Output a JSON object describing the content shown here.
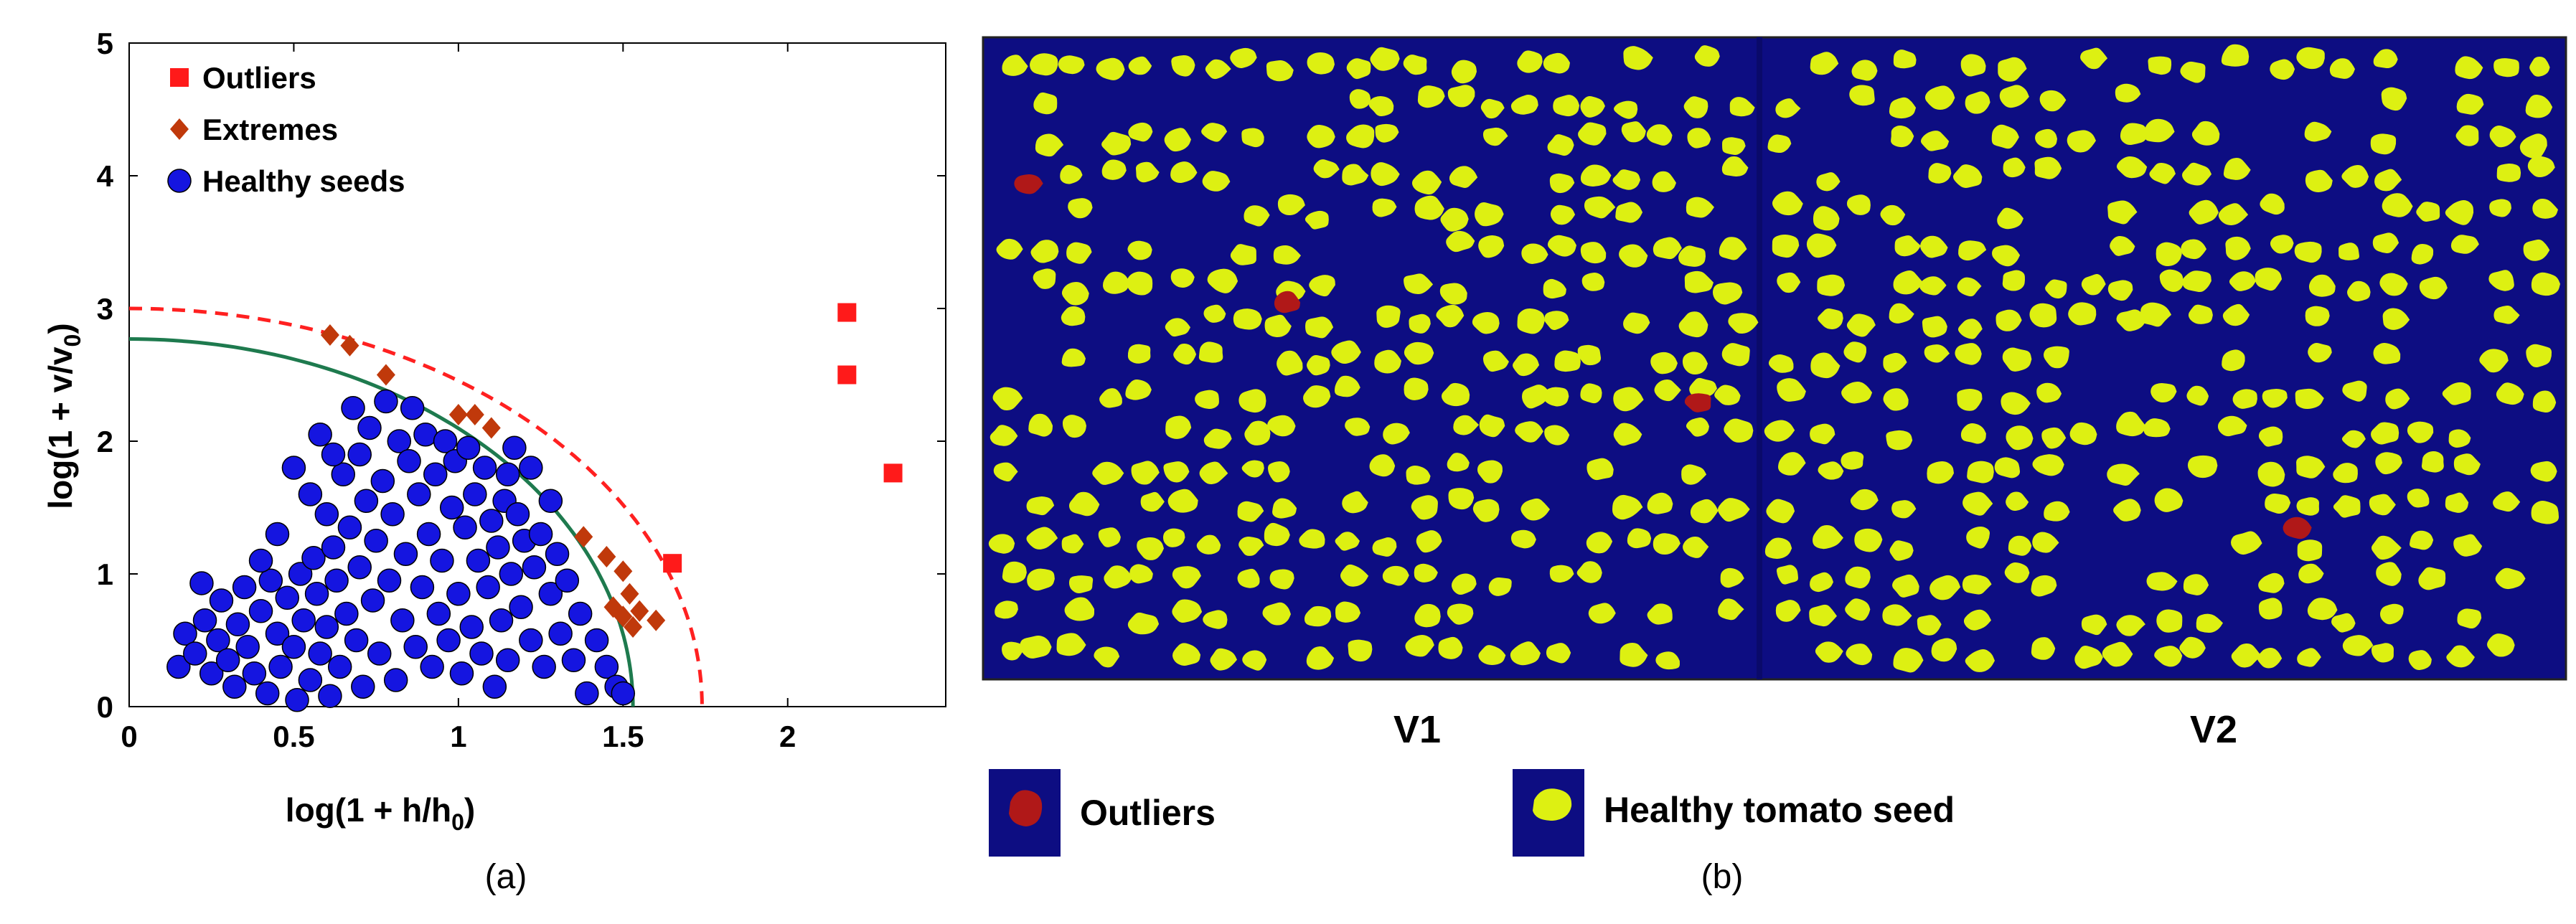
{
  "chart_data": [
    {
      "type": "scatter",
      "title": "",
      "xlabel_base": "log(1 + h/h",
      "xlabel_sub": "0",
      "xlabel_end": ")",
      "ylabel_base": "log(1 + v/v",
      "ylabel_sub": "0",
      "ylabel_end": ")",
      "xlim": [
        0,
        2.48
      ],
      "ylim": [
        0,
        5
      ],
      "xticks": [
        "0",
        "0.5",
        "1",
        "1.5",
        "2"
      ],
      "xtick_values": [
        0,
        0.5,
        1,
        1.5,
        2
      ],
      "yticks": [
        "0",
        "1",
        "2",
        "3",
        "4",
        "5"
      ],
      "ytick_values": [
        0,
        1,
        2,
        3,
        4,
        5
      ],
      "grid": false,
      "legend_placement": "top-left",
      "legend": [
        "Outliers",
        "Extremes",
        "Healthy seeds"
      ],
      "panel_label": "(a)",
      "curves": [
        {
          "name": "inner",
          "color": "#1e7a4e",
          "style": "solid",
          "x_intercept": 1.53,
          "y_intercept": 2.77
        },
        {
          "name": "outer",
          "color": "#ff2020",
          "style": "dashed",
          "x_intercept": 1.74,
          "y_intercept": 3.0
        }
      ],
      "series": [
        {
          "name": "Outliers",
          "marker": "square",
          "color": "#ff1a1a",
          "points": [
            [
              2.18,
              2.97
            ],
            [
              2.18,
              2.5
            ],
            [
              2.32,
              1.76
            ],
            [
              1.65,
              1.08
            ]
          ]
        },
        {
          "name": "Extremes",
          "marker": "diamond",
          "color": "#c0390b",
          "points": [
            [
              0.61,
              2.8
            ],
            [
              0.67,
              2.72
            ],
            [
              0.78,
              2.5
            ],
            [
              1.0,
              2.2
            ],
            [
              1.05,
              2.2
            ],
            [
              1.1,
              2.1
            ],
            [
              1.38,
              1.28
            ],
            [
              1.45,
              1.13
            ],
            [
              1.5,
              1.02
            ],
            [
              1.47,
              0.75
            ],
            [
              1.5,
              0.68
            ],
            [
              1.53,
              0.6
            ],
            [
              1.55,
              0.72
            ],
            [
              1.6,
              0.65
            ],
            [
              1.52,
              0.85
            ]
          ]
        },
        {
          "name": "Healthy seeds",
          "marker": "circle",
          "color": "#1515e0",
          "points": [
            [
              0.15,
              0.3
            ],
            [
              0.17,
              0.55
            ],
            [
              0.2,
              0.4
            ],
            [
              0.22,
              0.93
            ],
            [
              0.23,
              0.65
            ],
            [
              0.25,
              0.25
            ],
            [
              0.27,
              0.5
            ],
            [
              0.28,
              0.8
            ],
            [
              0.3,
              0.35
            ],
            [
              0.32,
              0.15
            ],
            [
              0.33,
              0.62
            ],
            [
              0.35,
              0.9
            ],
            [
              0.36,
              0.45
            ],
            [
              0.38,
              0.25
            ],
            [
              0.4,
              0.72
            ],
            [
              0.42,
              0.1
            ],
            [
              0.43,
              0.95
            ],
            [
              0.45,
              0.55
            ],
            [
              0.46,
              0.3
            ],
            [
              0.48,
              0.82
            ],
            [
              0.5,
              0.45
            ],
            [
              0.51,
              0.05
            ],
            [
              0.52,
              1.0
            ],
            [
              0.53,
              0.65
            ],
            [
              0.55,
              0.2
            ],
            [
              0.56,
              1.12
            ],
            [
              0.57,
              0.85
            ],
            [
              0.58,
              0.4
            ],
            [
              0.6,
              0.6
            ],
            [
              0.6,
              1.45
            ],
            [
              0.61,
              0.08
            ],
            [
              0.62,
              1.2
            ],
            [
              0.63,
              0.95
            ],
            [
              0.64,
              0.3
            ],
            [
              0.65,
              1.75
            ],
            [
              0.66,
              0.7
            ],
            [
              0.67,
              1.35
            ],
            [
              0.68,
              2.25
            ],
            [
              0.69,
              0.5
            ],
            [
              0.7,
              1.05
            ],
            [
              0.7,
              1.9
            ],
            [
              0.71,
              0.15
            ],
            [
              0.72,
              1.55
            ],
            [
              0.73,
              2.1
            ],
            [
              0.74,
              0.8
            ],
            [
              0.75,
              1.25
            ],
            [
              0.76,
              0.4
            ],
            [
              0.77,
              1.7
            ],
            [
              0.78,
              2.3
            ],
            [
              0.79,
              0.95
            ],
            [
              0.8,
              1.45
            ],
            [
              0.81,
              0.2
            ],
            [
              0.82,
              2.0
            ],
            [
              0.83,
              0.65
            ],
            [
              0.84,
              1.15
            ],
            [
              0.85,
              1.85
            ],
            [
              0.86,
              2.25
            ],
            [
              0.87,
              0.45
            ],
            [
              0.88,
              1.6
            ],
            [
              0.89,
              0.9
            ],
            [
              0.9,
              2.05
            ],
            [
              0.91,
              1.3
            ],
            [
              0.92,
              0.3
            ],
            [
              0.93,
              1.75
            ],
            [
              0.94,
              0.7
            ],
            [
              0.95,
              1.1
            ],
            [
              0.96,
              2.0
            ],
            [
              0.97,
              0.5
            ],
            [
              0.98,
              1.5
            ],
            [
              0.99,
              1.85
            ],
            [
              1.0,
              0.85
            ],
            [
              1.01,
              0.25
            ],
            [
              1.02,
              1.35
            ],
            [
              1.03,
              1.95
            ],
            [
              1.04,
              0.6
            ],
            [
              1.05,
              1.6
            ],
            [
              1.06,
              1.1
            ],
            [
              1.07,
              0.4
            ],
            [
              1.08,
              1.8
            ],
            [
              1.09,
              0.9
            ],
            [
              1.1,
              1.4
            ],
            [
              1.11,
              0.15
            ],
            [
              1.12,
              1.2
            ],
            [
              1.13,
              0.65
            ],
            [
              1.14,
              1.55
            ],
            [
              1.15,
              0.35
            ],
            [
              1.16,
              1.0
            ],
            [
              1.18,
              1.45
            ],
            [
              1.19,
              0.75
            ],
            [
              1.2,
              1.25
            ],
            [
              1.22,
              0.5
            ],
            [
              1.23,
              1.05
            ],
            [
              1.25,
              1.3
            ],
            [
              1.26,
              0.3
            ],
            [
              1.28,
              0.85
            ],
            [
              1.3,
              1.15
            ],
            [
              1.31,
              0.55
            ],
            [
              1.33,
              0.95
            ],
            [
              1.35,
              0.35
            ],
            [
              1.37,
              0.7
            ],
            [
              1.39,
              0.1
            ],
            [
              1.42,
              0.5
            ],
            [
              1.45,
              0.3
            ],
            [
              1.48,
              0.15
            ],
            [
              1.5,
              0.1
            ],
            [
              0.5,
              1.8
            ],
            [
              0.55,
              1.6
            ],
            [
              0.45,
              1.3
            ],
            [
              0.62,
              1.9
            ],
            [
              0.58,
              2.05
            ],
            [
              0.4,
              1.1
            ],
            [
              1.22,
              1.8
            ],
            [
              1.15,
              1.75
            ],
            [
              1.28,
              1.55
            ],
            [
              1.17,
              1.95
            ]
          ]
        }
      ]
    },
    {
      "type": "other",
      "panels": [
        {
          "label": "V1",
          "outliers": [
            [
              0.05,
              0.22
            ],
            [
              0.39,
              0.41
            ],
            [
              0.93,
              0.57
            ]
          ]
        },
        {
          "label": "V2",
          "outliers": [
            [
              0.67,
              0.77
            ]
          ]
        }
      ],
      "background_color": "#0d0d82",
      "seed_color": "#ddf012",
      "outlier_color": "#b01818",
      "legend": [
        {
          "name": "Outliers",
          "swatch": "outlier"
        },
        {
          "name": "Healthy tomato seed",
          "swatch": "seed"
        }
      ],
      "panel_label": "(b)"
    }
  ]
}
